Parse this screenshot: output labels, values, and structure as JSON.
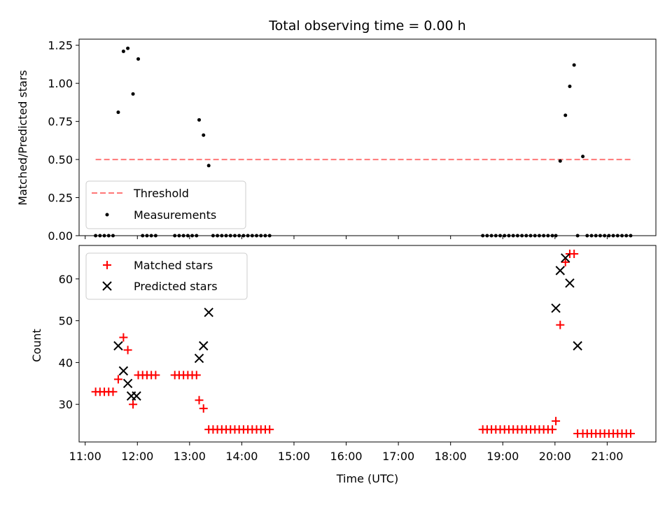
{
  "chart_data": [
    {
      "type": "scatter",
      "title": "Total observing time = 0.00 h",
      "xlabel": "",
      "ylabel": "Matched/Predicted stars",
      "xlim": [
        "10:53",
        "21:56"
      ],
      "ylim": [
        0,
        1.29
      ],
      "xticks": [
        "11:00",
        "12:00",
        "13:00",
        "14:00",
        "15:00",
        "16:00",
        "17:00",
        "18:00",
        "19:00",
        "20:00",
        "21:00"
      ],
      "yticks": [
        "0.00",
        "0.25",
        "0.50",
        "0.75",
        "1.00",
        "1.25"
      ],
      "legend_position": "lower-left",
      "series": [
        {
          "name": "Threshold",
          "style": "dashed-line",
          "color": "#ff7777",
          "x": [
            "11:12",
            "21:30"
          ],
          "y": [
            0.5,
            0.5
          ]
        },
        {
          "name": "Measurements",
          "style": "dot",
          "color": "#000000",
          "x": [
            "11:12",
            "11:17",
            "11:22",
            "11:27",
            "11:32",
            "11:38",
            "11:44",
            "11:49",
            "11:55",
            "12:01",
            "12:06",
            "12:11",
            "12:16",
            "12:21",
            "12:43",
            "12:48",
            "12:53",
            "12:58",
            "13:03",
            "13:08",
            "13:11",
            "13:16",
            "13:22",
            "13:27",
            "13:32",
            "13:37",
            "13:42",
            "13:47",
            "13:52",
            "13:57",
            "14:02",
            "14:07",
            "14:12",
            "14:17",
            "14:22",
            "14:27",
            "14:32",
            "18:37",
            "18:42",
            "18:47",
            "18:52",
            "18:57",
            "19:02",
            "19:07",
            "19:12",
            "19:17",
            "19:22",
            "19:27",
            "19:32",
            "19:37",
            "19:42",
            "19:47",
            "19:52",
            "19:57",
            "20:01",
            "20:06",
            "20:12",
            "20:17",
            "20:22",
            "20:26",
            "20:32",
            "20:37",
            "20:42",
            "20:47",
            "20:52",
            "20:57",
            "21:02",
            "21:07",
            "21:12",
            "21:17",
            "21:22",
            "21:27"
          ],
          "y": [
            0,
            0,
            0,
            0,
            0,
            0.81,
            1.21,
            1.23,
            0.93,
            1.16,
            0,
            0,
            0,
            0,
            0,
            0,
            0,
            0,
            0,
            0,
            0.76,
            0.66,
            0.46,
            0,
            0,
            0,
            0,
            0,
            0,
            0,
            0,
            0,
            0,
            0,
            0,
            0,
            0,
            0,
            0,
            0,
            0,
            0,
            0,
            0,
            0,
            0,
            0,
            0,
            0,
            0,
            0,
            0,
            0,
            0,
            0,
            0.49,
            0.79,
            0.98,
            1.12,
            0,
            0.52,
            0,
            0,
            0,
            0,
            0,
            0,
            0,
            0,
            0,
            0,
            0
          ]
        }
      ]
    },
    {
      "type": "scatter",
      "title": "",
      "xlabel": "Time (UTC)",
      "ylabel": "Count",
      "xlim": [
        "10:53",
        "21:56"
      ],
      "ylim": [
        21,
        68
      ],
      "xticks": [
        "11:00",
        "12:00",
        "13:00",
        "14:00",
        "15:00",
        "16:00",
        "17:00",
        "18:00",
        "19:00",
        "20:00",
        "21:00"
      ],
      "yticks": [
        "30",
        "40",
        "50",
        "60"
      ],
      "legend_position": "top-left",
      "series": [
        {
          "name": "Matched stars",
          "style": "plus",
          "color": "#ff0000",
          "x": [
            "11:12",
            "11:17",
            "11:22",
            "11:27",
            "11:32",
            "11:38",
            "11:44",
            "11:49",
            "11:55",
            "12:01",
            "12:06",
            "12:11",
            "12:16",
            "12:21",
            "12:43",
            "12:48",
            "12:53",
            "12:58",
            "13:03",
            "13:08",
            "13:11",
            "13:16",
            "13:22",
            "13:27",
            "13:32",
            "13:37",
            "13:42",
            "13:47",
            "13:52",
            "13:57",
            "14:02",
            "14:07",
            "14:12",
            "14:17",
            "14:22",
            "14:27",
            "14:32",
            "18:37",
            "18:42",
            "18:47",
            "18:52",
            "18:57",
            "19:02",
            "19:07",
            "19:12",
            "19:17",
            "19:22",
            "19:27",
            "19:32",
            "19:37",
            "19:42",
            "19:47",
            "19:52",
            "19:57",
            "20:01",
            "20:06",
            "20:12",
            "20:17",
            "20:22",
            "20:26",
            "20:32",
            "20:37",
            "20:42",
            "20:47",
            "20:52",
            "20:57",
            "21:02",
            "21:07",
            "21:12",
            "21:17",
            "21:22",
            "21:27"
          ],
          "y": [
            33,
            33,
            33,
            33,
            33,
            36,
            46,
            43,
            30,
            37,
            37,
            37,
            37,
            37,
            37,
            37,
            37,
            37,
            37,
            37,
            31,
            29,
            24,
            24,
            24,
            24,
            24,
            24,
            24,
            24,
            24,
            24,
            24,
            24,
            24,
            24,
            24,
            24,
            24,
            24,
            24,
            24,
            24,
            24,
            24,
            24,
            24,
            24,
            24,
            24,
            24,
            24,
            24,
            24,
            26,
            49,
            64,
            66,
            66,
            23,
            23,
            23,
            23,
            23,
            23,
            23,
            23,
            23,
            23,
            23,
            23,
            23
          ]
        },
        {
          "name": "Predicted stars",
          "style": "x",
          "color": "#000000",
          "x": [
            "11:38",
            "11:44",
            "11:49",
            "11:53",
            "11:59",
            "13:11",
            "13:16",
            "13:22",
            "20:01",
            "20:06",
            "20:12",
            "20:17",
            "20:26"
          ],
          "y": [
            44,
            38,
            35,
            32,
            32,
            41,
            44,
            52,
            53,
            62,
            65,
            59,
            44
          ]
        }
      ]
    }
  ]
}
